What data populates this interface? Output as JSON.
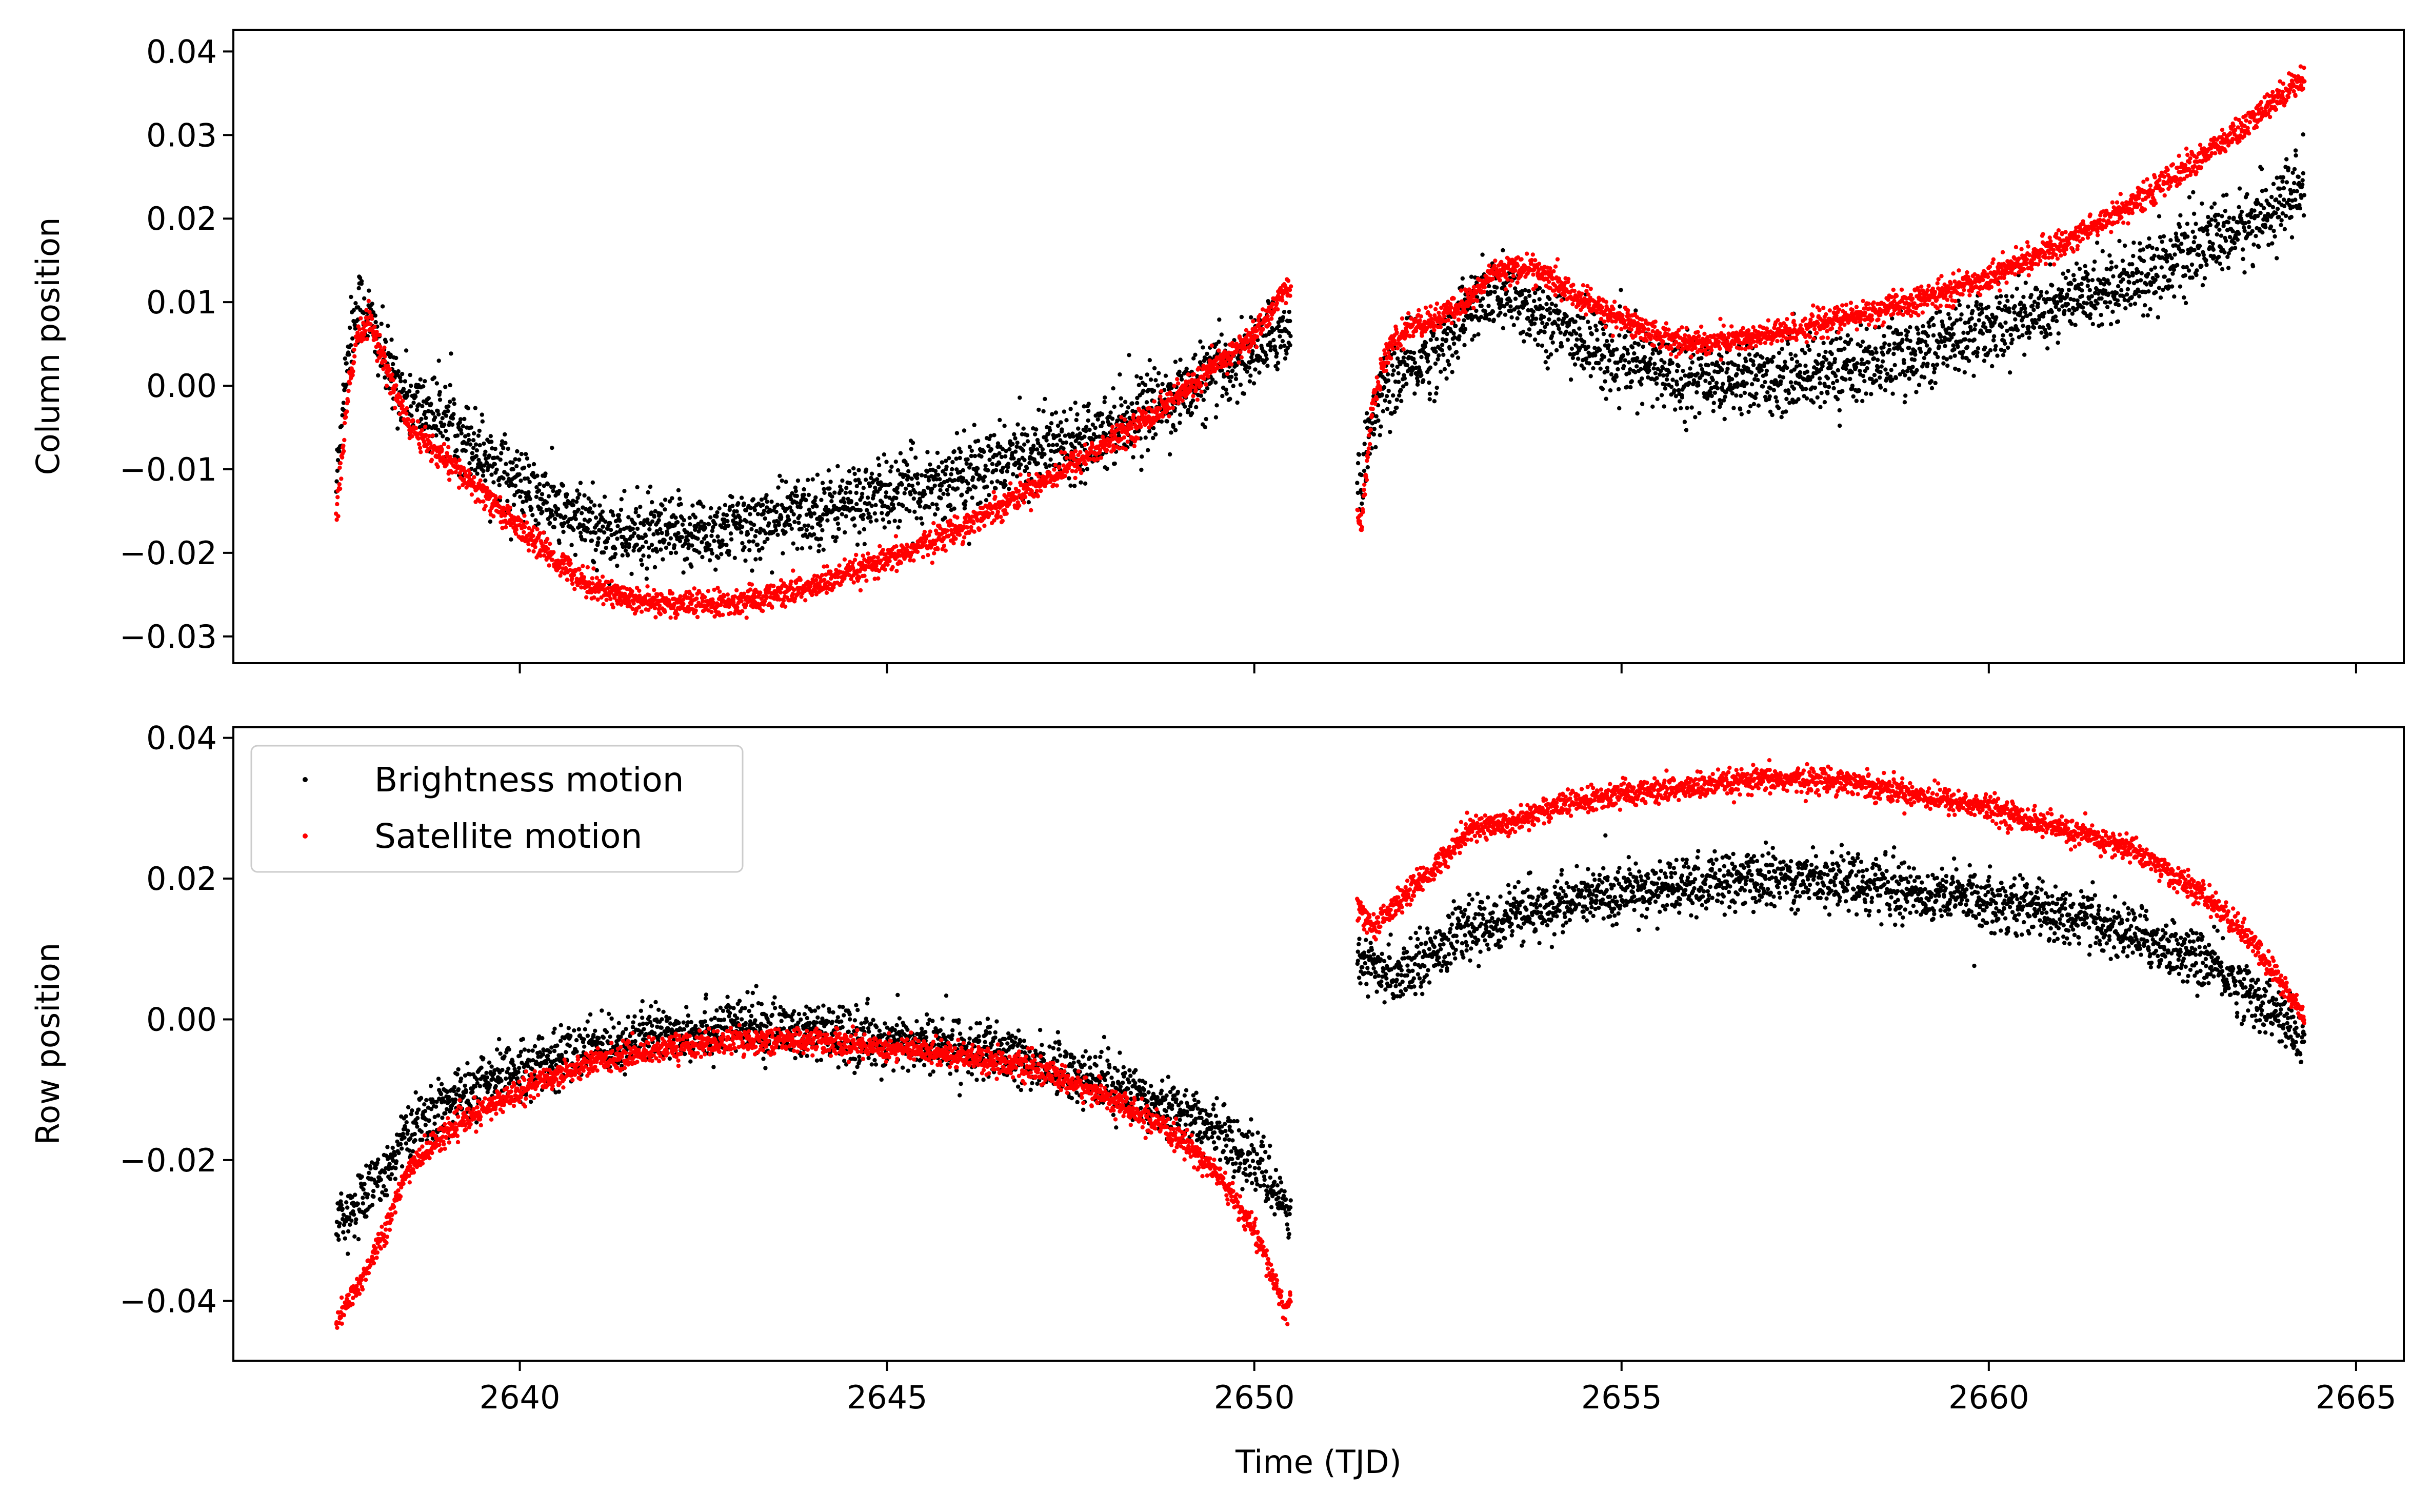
{
  "chart_data": [
    {
      "type": "scatter",
      "panel": "top",
      "xlabel": "",
      "ylabel": "Column position",
      "xlim": [
        2636.1,
        2665.65
      ],
      "ylim": [
        -0.0332,
        0.0426
      ],
      "x_ticks": [
        2640,
        2645,
        2650,
        2655,
        2660,
        2665
      ],
      "x_tick_labels_shown": false,
      "y_ticks": [
        -0.03,
        -0.02,
        -0.01,
        0.0,
        0.01,
        0.02,
        0.03,
        0.04
      ],
      "y_tick_labels": [
        "−0.03",
        "−0.02",
        "−0.01",
        "0.00",
        "0.01",
        "0.02",
        "0.03",
        "0.04"
      ],
      "data_gap": [
        2650.5,
        2651.4
      ],
      "series": [
        {
          "name": "Brightness motion",
          "color": "#000000",
          "scatter_sigma": 0.0022,
          "x": [
            2637.5,
            2637.65,
            2637.8,
            2637.95,
            2638.2,
            2638.5,
            2639.0,
            2639.5,
            2640.0,
            2640.5,
            2641.0,
            2641.5,
            2642.0,
            2642.5,
            2643.0,
            2643.5,
            2644.0,
            2645.0,
            2646.0,
            2647.0,
            2648.0,
            2649.0,
            2650.0,
            2650.45,
            2651.45,
            2651.6,
            2651.8,
            2652.1,
            2652.5,
            2652.9,
            2653.3,
            2653.8,
            2654.5,
            2655.0,
            2655.5,
            2656.0,
            2657.0,
            2658.0,
            2659.0,
            2660.0,
            2661.0,
            2662.0,
            2663.0,
            2663.5,
            2664.0,
            2664.3
          ],
          "y": [
            -0.012,
            0.004,
            0.01,
            0.008,
            0.002,
            -0.002,
            -0.004,
            -0.008,
            -0.012,
            -0.015,
            -0.017,
            -0.018,
            -0.018,
            -0.0175,
            -0.017,
            -0.016,
            -0.015,
            -0.013,
            -0.011,
            -0.008,
            -0.005,
            -0.001,
            0.004,
            0.007,
            -0.012,
            -0.004,
            0.0,
            0.002,
            0.004,
            0.009,
            0.011,
            0.009,
            0.005,
            0.003,
            0.002,
            0.001,
            0.001,
            0.002,
            0.004,
            0.007,
            0.01,
            0.013,
            0.017,
            0.019,
            0.022,
            0.024
          ]
        },
        {
          "name": "Satellite motion",
          "color": "#ff0000",
          "scatter_sigma": 0.0008,
          "x": [
            2637.5,
            2637.65,
            2637.8,
            2637.95,
            2638.1,
            2638.5,
            2639.0,
            2639.5,
            2640.0,
            2640.5,
            2641.0,
            2641.5,
            2642.0,
            2642.5,
            2643.0,
            2643.5,
            2644.0,
            2645.0,
            2646.0,
            2647.0,
            2648.0,
            2649.0,
            2650.0,
            2650.45,
            2651.45,
            2651.6,
            2651.8,
            2652.1,
            2652.5,
            2652.9,
            2653.3,
            2653.8,
            2654.5,
            2655.0,
            2655.5,
            2656.0,
            2657.0,
            2658.0,
            2659.0,
            2660.0,
            2661.0,
            2662.0,
            2663.0,
            2663.5,
            2664.0,
            2664.3
          ],
          "y": [
            -0.016,
            -0.002,
            0.006,
            0.008,
            0.004,
            -0.005,
            -0.009,
            -0.013,
            -0.017,
            -0.021,
            -0.024,
            -0.0255,
            -0.026,
            -0.0262,
            -0.026,
            -0.025,
            -0.024,
            -0.021,
            -0.017,
            -0.012,
            -0.007,
            -0.001,
            0.006,
            0.012,
            -0.017,
            -0.003,
            0.004,
            0.007,
            0.008,
            0.01,
            0.014,
            0.014,
            0.01,
            0.008,
            0.006,
            0.005,
            0.006,
            0.008,
            0.01,
            0.013,
            0.017,
            0.022,
            0.028,
            0.031,
            0.035,
            0.037
          ]
        }
      ]
    },
    {
      "type": "scatter",
      "panel": "bottom",
      "xlabel": "Time (TJD)",
      "ylabel": "Row position",
      "xlim": [
        2636.1,
        2665.65
      ],
      "ylim": [
        -0.0485,
        0.0415
      ],
      "x_ticks": [
        2640,
        2645,
        2650,
        2655,
        2660,
        2665
      ],
      "x_tick_labels": [
        "2640",
        "2645",
        "2650",
        "2655",
        "2660",
        "2665"
      ],
      "y_ticks": [
        -0.04,
        -0.02,
        0.0,
        0.02,
        0.04
      ],
      "y_tick_labels": [
        "−0.04",
        "−0.02",
        "0.00",
        "0.02",
        "0.04"
      ],
      "data_gap": [
        2650.5,
        2651.4
      ],
      "legend": {
        "placement": "upper-left",
        "entries": [
          {
            "label": "Brightness motion",
            "color": "#000000"
          },
          {
            "label": "Satellite motion",
            "color": "#ff0000"
          }
        ]
      },
      "series": [
        {
          "name": "Brightness motion",
          "color": "#000000",
          "scatter_sigma": 0.002,
          "x": [
            2637.5,
            2638.0,
            2638.5,
            2639.0,
            2640.0,
            2641.0,
            2642.0,
            2643.0,
            2644.0,
            2645.0,
            2646.0,
            2647.0,
            2648.0,
            2649.0,
            2649.5,
            2650.0,
            2650.45,
            2651.4,
            2651.8,
            2652.2,
            2652.6,
            2653.0,
            2654.0,
            2655.0,
            2656.0,
            2657.0,
            2658.0,
            2659.0,
            2660.0,
            2661.0,
            2662.0,
            2663.0,
            2663.5,
            2664.0,
            2664.3
          ],
          "y": [
            -0.029,
            -0.024,
            -0.016,
            -0.012,
            -0.007,
            -0.004,
            -0.002,
            -0.001,
            -0.002,
            -0.003,
            -0.004,
            -0.006,
            -0.009,
            -0.013,
            -0.016,
            -0.02,
            -0.027,
            0.008,
            0.006,
            0.008,
            0.011,
            0.013,
            0.016,
            0.018,
            0.019,
            0.02,
            0.02,
            0.018,
            0.017,
            0.015,
            0.012,
            0.008,
            0.004,
            0.0,
            -0.004
          ]
        },
        {
          "name": "Satellite motion",
          "color": "#ff0000",
          "scatter_sigma": 0.0009,
          "x": [
            2637.5,
            2637.8,
            2638.2,
            2638.5,
            2639.0,
            2640.0,
            2641.0,
            2642.0,
            2643.0,
            2644.0,
            2645.0,
            2646.0,
            2647.0,
            2648.0,
            2649.0,
            2649.5,
            2650.0,
            2650.45,
            2651.4,
            2651.6,
            2652.0,
            2652.5,
            2652.9,
            2653.5,
            2654.0,
            2655.0,
            2656.0,
            2657.0,
            2658.0,
            2659.0,
            2660.0,
            2661.0,
            2662.0,
            2663.0,
            2663.5,
            2664.0,
            2664.3
          ],
          "y": [
            -0.043,
            -0.038,
            -0.029,
            -0.021,
            -0.016,
            -0.01,
            -0.006,
            -0.004,
            -0.003,
            -0.003,
            -0.004,
            -0.005,
            -0.007,
            -0.011,
            -0.017,
            -0.022,
            -0.03,
            -0.042,
            0.016,
            0.013,
            0.017,
            0.022,
            0.027,
            0.028,
            0.03,
            0.032,
            0.033,
            0.034,
            0.034,
            0.032,
            0.03,
            0.027,
            0.024,
            0.017,
            0.012,
            0.005,
            0.0
          ]
        }
      ]
    }
  ]
}
